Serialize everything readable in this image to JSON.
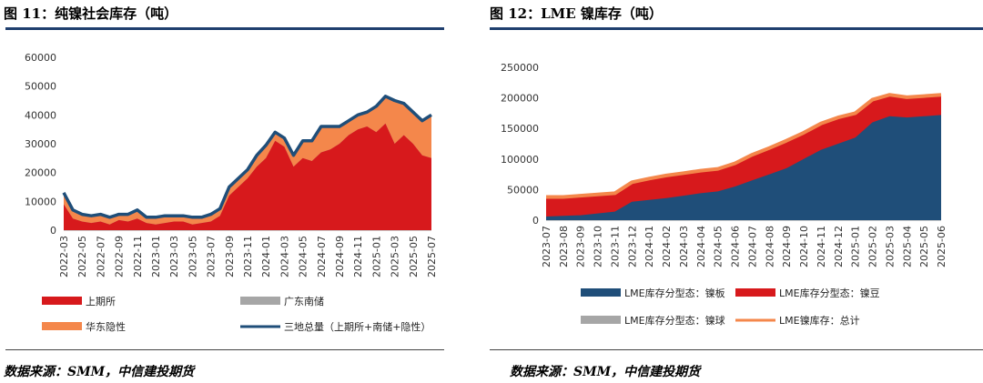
{
  "left": {
    "title": "图 11：纯镍社会库存（吨）",
    "source": "数据来源：SMM，中信建投期货",
    "chart_data": {
      "type": "area",
      "title": "纯镍社会库存（吨）",
      "ylim": [
        0,
        60000
      ],
      "yticks": [
        "0",
        "10000",
        "20000",
        "30000",
        "40000",
        "50000",
        "60000"
      ],
      "xticks": [
        "2022-03",
        "2022-05",
        "2022-07",
        "2022-09",
        "2022-11",
        "2023-01",
        "2023-03",
        "2023-05",
        "2023-07",
        "2023-09",
        "2023-11",
        "2024-01",
        "2024-03",
        "2024-05",
        "2024-07",
        "2024-09",
        "2024-11",
        "2025-01",
        "2025-03",
        "2025-05",
        "2025-07"
      ],
      "x": [
        "2022-03",
        "2022-04",
        "2022-05",
        "2022-06",
        "2022-07",
        "2022-08",
        "2022-09",
        "2022-10",
        "2022-11",
        "2022-12",
        "2023-01",
        "2023-02",
        "2023-03",
        "2023-04",
        "2023-05",
        "2023-06",
        "2023-07",
        "2023-08",
        "2023-09",
        "2023-10",
        "2023-11",
        "2023-12",
        "2024-01",
        "2024-02",
        "2024-03",
        "2024-04",
        "2024-05",
        "2024-06",
        "2024-07",
        "2024-08",
        "2024-09",
        "2024-10",
        "2024-11",
        "2024-12",
        "2025-01",
        "2025-02",
        "2025-03",
        "2025-04",
        "2025-05",
        "2025-06",
        "2025-07"
      ],
      "series": [
        {
          "name": "上期所",
          "color": "#d7191c",
          "values": [
            9000,
            4000,
            3000,
            2500,
            3000,
            2000,
            3500,
            3000,
            4000,
            2500,
            2000,
            2500,
            3000,
            3000,
            2000,
            2500,
            3000,
            5000,
            12000,
            15000,
            18000,
            22000,
            25000,
            31000,
            29000,
            22000,
            25000,
            24000,
            27000,
            28000,
            30000,
            33000,
            35000,
            36000,
            34000,
            37000,
            30000,
            33000,
            30000,
            26000,
            25000
          ]
        },
        {
          "name": "广东南储",
          "color": "#a6a6a6",
          "values": [
            0,
            0,
            0,
            0,
            0,
            0,
            0,
            0,
            0,
            0,
            0,
            0,
            0,
            0,
            0,
            0,
            0,
            0,
            0,
            0,
            0,
            0,
            0,
            0,
            0,
            0,
            0,
            0,
            0,
            0,
            0,
            0,
            0,
            0,
            0,
            0,
            0,
            0,
            0,
            0,
            0
          ]
        },
        {
          "name": "华东隐性",
          "color": "#f4874b",
          "values": [
            4000,
            3000,
            2500,
            2500,
            2500,
            2500,
            2000,
            2500,
            3000,
            2000,
            2500,
            2500,
            2000,
            2000,
            2500,
            2000,
            2500,
            2500,
            3000,
            3000,
            3000,
            4000,
            4500,
            3000,
            3000,
            4000,
            6000,
            7000,
            9000,
            8000,
            6000,
            5000,
            5000,
            5000,
            9000,
            9500,
            15000,
            11000,
            11000,
            12000,
            15000
          ]
        },
        {
          "name": "三地总量（上期所+南储+隐性）",
          "color": "#1f4e79",
          "values": [
            13000,
            7000,
            5500,
            5000,
            5500,
            4500,
            5500,
            5500,
            7000,
            4500,
            4500,
            5000,
            5000,
            5000,
            4500,
            4500,
            5500,
            7500,
            15000,
            18000,
            21000,
            26000,
            29500,
            34000,
            32000,
            26000,
            31000,
            31000,
            36000,
            36000,
            36000,
            38000,
            40000,
            41000,
            43000,
            46500,
            45000,
            44000,
            41000,
            38000,
            40000
          ]
        }
      ]
    },
    "legend": [
      {
        "label": "上期所",
        "type": "box",
        "color": "#d7191c"
      },
      {
        "label": "广东南储",
        "type": "box",
        "color": "#a6a6a6"
      },
      {
        "label": "华东隐性",
        "type": "box",
        "color": "#f4874b"
      },
      {
        "label": "三地总量（上期所+南储+隐性）",
        "type": "line",
        "color": "#1f4e79"
      }
    ]
  },
  "right": {
    "title": "图 12：LME 镍库存（吨）",
    "source": "数据来源：SMM，中信建投期货",
    "chart_data": {
      "type": "area",
      "title": "LME 镍库存（吨）",
      "ylim": [
        0,
        250000
      ],
      "yticks": [
        "0",
        "50000",
        "100000",
        "150000",
        "200000",
        "250000"
      ],
      "xticks": [
        "2023-07",
        "2023-08",
        "2023-09",
        "2023-10",
        "2023-11",
        "2023-12",
        "2024-01",
        "2024-02",
        "2024-03",
        "2024-04",
        "2024-05",
        "2024-06",
        "2024-07",
        "2024-08",
        "2024-09",
        "2024-10",
        "2024-11",
        "2024-12",
        "2025-01",
        "2025-02",
        "2025-03",
        "2025-04",
        "2025-05",
        "2025-06"
      ],
      "x": [
        "2023-07",
        "2023-08",
        "2023-09",
        "2023-10",
        "2023-11",
        "2023-12",
        "2024-01",
        "2024-02",
        "2024-03",
        "2024-04",
        "2024-05",
        "2024-06",
        "2024-07",
        "2024-08",
        "2024-09",
        "2024-10",
        "2024-11",
        "2024-12",
        "2025-01",
        "2025-02",
        "2025-03",
        "2025-04",
        "2025-05",
        "2025-06"
      ],
      "series": [
        {
          "name": "LME库存分型态：镍板",
          "color": "#1f4e79",
          "values": [
            6000,
            7000,
            8000,
            11000,
            14000,
            30000,
            33000,
            36000,
            40000,
            44000,
            47000,
            55000,
            65000,
            75000,
            85000,
            100000,
            115000,
            125000,
            135000,
            160000,
            170000,
            168000,
            170000,
            172000
          ]
        },
        {
          "name": "LME库存分型态：镍豆",
          "color": "#d7191c",
          "values": [
            32000,
            31000,
            32000,
            31000,
            30000,
            32000,
            35000,
            37000,
            37000,
            37000,
            37000,
            38000,
            42000,
            43000,
            45000,
            43000,
            43000,
            43000,
            40000,
            37000,
            35000,
            33000,
            33000,
            33000
          ]
        },
        {
          "name": "LME库存分型态：镍球",
          "color": "#a6a6a6",
          "values": [
            0,
            0,
            0,
            0,
            0,
            0,
            0,
            0,
            0,
            0,
            0,
            0,
            0,
            0,
            0,
            0,
            0,
            0,
            0,
            0,
            0,
            0,
            0,
            0
          ]
        },
        {
          "name": "LME镍库存：总计",
          "color": "#f4874b",
          "values": [
            38000,
            38000,
            40000,
            42000,
            44000,
            62000,
            68000,
            73000,
            77000,
            81000,
            84000,
            93000,
            107000,
            118000,
            130000,
            143000,
            158000,
            168000,
            175000,
            197000,
            205000,
            201000,
            203000,
            205000
          ]
        }
      ]
    },
    "legend": [
      {
        "label": "LME库存分型态：镍板",
        "type": "box",
        "color": "#1f4e79"
      },
      {
        "label": "LME库存分型态：镍豆",
        "type": "box",
        "color": "#d7191c"
      },
      {
        "label": "LME库存分型态：镍球",
        "type": "box",
        "color": "#a6a6a6"
      },
      {
        "label": "LME镍库存：总计",
        "type": "line",
        "color": "#f4874b"
      }
    ]
  }
}
